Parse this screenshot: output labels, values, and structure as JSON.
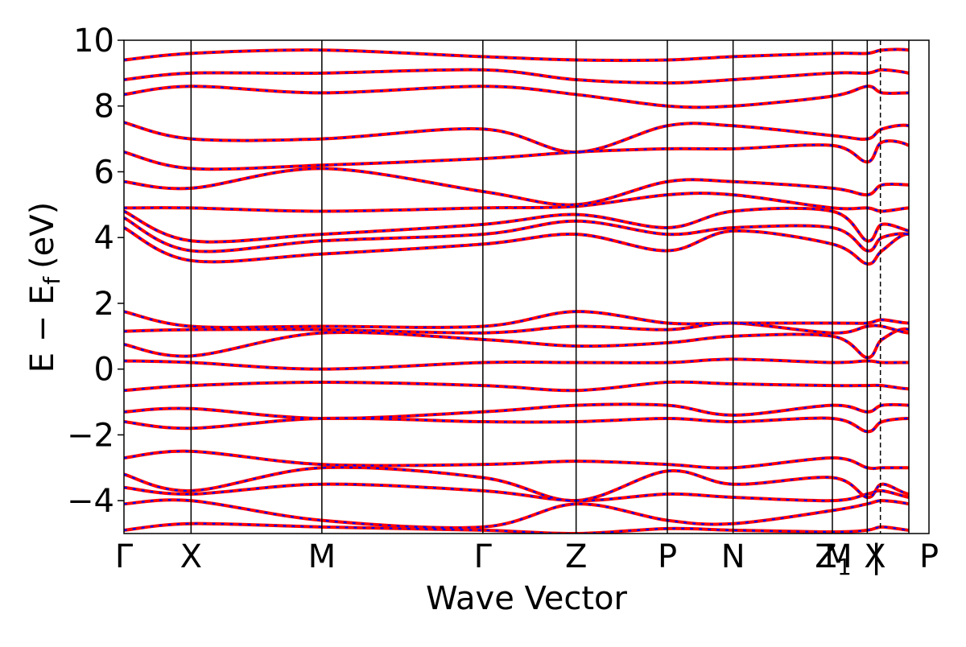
{
  "chart_data": {
    "type": "line",
    "title": "",
    "xlabel": "Wave Vector",
    "ylabel": "E − E",
    "ylabel_subscript": "f",
    "ylabel_unit": "(eV)",
    "ylim": [
      -5,
      10
    ],
    "yticks": [
      -4,
      -2,
      0,
      2,
      4,
      6,
      8,
      10
    ],
    "ytick_labels": [
      "−4",
      "−2",
      "0",
      "2",
      "4",
      "6",
      "8",
      "10"
    ],
    "xlim": [
      0,
      12
    ],
    "kpoints": [
      {
        "label": "Γ",
        "x": 0
      },
      {
        "label": "X",
        "x": 1
      },
      {
        "label": "M",
        "x": 2.95
      },
      {
        "label": "Γ",
        "x": 5.35
      },
      {
        "label": "Z",
        "x": 6.74
      },
      {
        "label": "P",
        "x": 8.1
      },
      {
        "label": "N",
        "x": 9.08
      },
      {
        "label": "Z",
        "x": 10.56
      },
      {
        "label": "M",
        "x": 11.08
      },
      {
        "label": "|",
        "x": 11.3
      },
      {
        "label": "X",
        "x": 11.7
      },
      {
        "label": "P",
        "x": 12
      }
    ],
    "label_subscripts": [
      {
        "after_label_index": 7,
        "text": "1"
      }
    ],
    "grid": false,
    "legend": "none",
    "colors": {
      "series_a": "#ff0000",
      "series_b": "#0000ff"
    },
    "series": [
      {
        "style": "solid",
        "color": "#ff0000",
        "bands": [
          [
            -4.9,
            -4.7,
            -4.8,
            -4.9,
            -5.0,
            -4.85,
            -4.9,
            -4.95,
            -4.9,
            -4.8,
            -4.9,
            -4.95,
            -4.9
          ],
          [
            -4.1,
            -4.0,
            -4.6,
            -4.8,
            -4.1,
            -4.6,
            -4.7,
            -4.3,
            -4.1,
            -4.0,
            -4.1,
            -4.3,
            -4.5
          ],
          [
            -3.6,
            -3.8,
            -3.5,
            -3.7,
            -4.0,
            -3.8,
            -3.9,
            -4.0,
            -3.8,
            -3.7,
            -3.9,
            -4.0,
            -3.9
          ],
          [
            -3.2,
            -3.7,
            -3.0,
            -3.3,
            -4.0,
            -3.1,
            -3.5,
            -3.3,
            -3.9,
            -3.5,
            -3.8,
            -3.7,
            -3.4
          ],
          [
            -2.7,
            -2.5,
            -2.9,
            -2.9,
            -2.8,
            -2.9,
            -3.0,
            -2.7,
            -3.0,
            -3.0,
            -3.0,
            -3.0,
            -2.7
          ],
          [
            -1.6,
            -1.8,
            -1.5,
            -1.6,
            -1.6,
            -1.5,
            -1.6,
            -1.5,
            -1.9,
            -1.6,
            -1.5,
            -1.6,
            -1.6
          ],
          [
            -1.3,
            -1.2,
            -1.5,
            -1.3,
            -1.1,
            -1.1,
            -1.4,
            -1.1,
            -1.3,
            -1.1,
            -1.1,
            -1.2,
            -1.2
          ],
          [
            -0.65,
            -0.5,
            -0.4,
            -0.5,
            -0.65,
            -0.4,
            -0.45,
            -0.5,
            -0.5,
            -0.5,
            -0.6,
            -0.5,
            -0.6
          ],
          [
            0.25,
            0.2,
            0.0,
            0.2,
            0.2,
            0.2,
            0.3,
            0.2,
            0.25,
            0.2,
            0.2,
            0.2,
            0.3
          ],
          [
            0.75,
            0.4,
            1.1,
            0.9,
            0.7,
            0.8,
            1.0,
            1.0,
            0.35,
            0.9,
            1.2,
            0.3,
            0.95
          ],
          [
            1.15,
            1.2,
            1.2,
            1.1,
            1.3,
            1.2,
            1.4,
            1.1,
            1.3,
            1.3,
            1.1,
            1.2,
            1.2
          ],
          [
            1.75,
            1.3,
            1.3,
            1.3,
            1.75,
            1.4,
            1.4,
            1.4,
            1.4,
            1.5,
            1.4,
            1.5,
            1.5
          ],
          [
            4.3,
            3.3,
            3.5,
            3.8,
            4.1,
            3.6,
            4.2,
            3.8,
            3.2,
            3.6,
            4.1,
            3.3,
            3.8
          ],
          [
            4.6,
            3.6,
            3.9,
            4.1,
            4.5,
            4.1,
            4.3,
            4.3,
            3.6,
            4.0,
            4.1,
            3.7,
            4.1
          ],
          [
            4.8,
            3.9,
            4.1,
            4.4,
            4.7,
            4.3,
            4.8,
            4.8,
            3.9,
            4.4,
            4.2,
            4.0,
            4.8
          ],
          [
            4.9,
            4.9,
            4.8,
            4.9,
            4.95,
            5.3,
            5.3,
            4.9,
            4.9,
            4.8,
            4.9,
            4.9,
            5.0
          ],
          [
            5.7,
            5.5,
            6.1,
            5.4,
            5.0,
            5.7,
            5.7,
            5.5,
            5.3,
            5.6,
            5.6,
            5.5,
            5.5
          ],
          [
            6.6,
            6.1,
            6.2,
            6.4,
            6.6,
            6.7,
            6.7,
            6.8,
            6.3,
            6.9,
            6.8,
            6.2,
            6.8
          ],
          [
            7.5,
            7.0,
            7.0,
            7.3,
            6.6,
            7.4,
            7.4,
            7.1,
            7.0,
            7.3,
            7.4,
            7.0,
            7.1
          ],
          [
            8.35,
            8.6,
            8.4,
            8.6,
            8.35,
            8.0,
            8.0,
            8.3,
            8.6,
            8.4,
            8.4,
            8.4,
            8.0
          ],
          [
            8.8,
            9.0,
            9.0,
            9.1,
            8.8,
            8.7,
            8.8,
            9.0,
            9.0,
            9.1,
            9.0,
            8.8,
            9.0
          ],
          [
            9.4,
            9.6,
            9.7,
            9.5,
            9.4,
            9.4,
            9.5,
            9.6,
            9.6,
            9.7,
            9.7,
            9.5,
            9.6
          ]
        ]
      },
      {
        "style": "dashed",
        "color": "#0000ff",
        "bands_ref": "same"
      }
    ]
  }
}
